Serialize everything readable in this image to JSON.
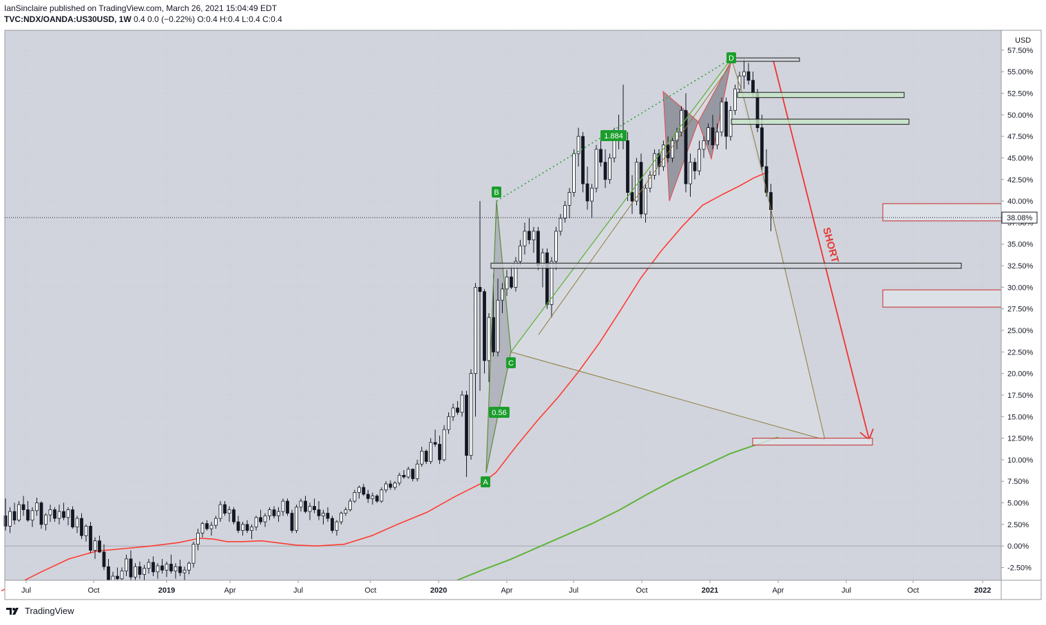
{
  "header": {
    "published_line": "IanSinclaire published on TradingView.com, March 26, 2021 15:04:49 EDT",
    "symbol": "TVC:NDX/OANDA:US30USD, 1W",
    "values": "0.4 0.0 (−0.22%) O:0.4 H:0.4 L:0.4 C:0.4"
  },
  "footer": {
    "brand": "TradingView",
    "logo_icon": "tradingview-logo-icon"
  },
  "chart_data": {
    "type": "candlestick",
    "currency_label": "USD",
    "y_unit": "%",
    "ylim": [
      -3.8,
      58.0
    ],
    "y_ticks": [
      "-2.50%",
      "0.00%",
      "2.50%",
      "5.00%",
      "7.50%",
      "10.00%",
      "12.50%",
      "15.00%",
      "17.50%",
      "20.00%",
      "22.50%",
      "25.00%",
      "27.50%",
      "30.00%",
      "32.50%",
      "35.00%",
      "37.50%",
      "40.00%",
      "42.50%",
      "45.00%",
      "47.50%",
      "50.00%",
      "52.50%",
      "55.00%",
      "57.50%"
    ],
    "x_ticks": [
      "Jul",
      "Oct",
      "2019",
      "Apr",
      "Jul",
      "Oct",
      "2020",
      "Apr",
      "Jul",
      "Oct",
      "2021",
      "Apr",
      "Jul",
      "Oct",
      "2022"
    ],
    "bold_x_ticks": [
      "2019",
      "2020",
      "2021",
      "2022"
    ],
    "last_price_label": "38.08%",
    "last_price": 38.08,
    "candles": [
      [
        3.5,
        5.5,
        1.8,
        2.3
      ],
      [
        2.3,
        4.5,
        1.5,
        4.0
      ],
      [
        4.0,
        5.0,
        2.5,
        3.0
      ],
      [
        3.0,
        5.2,
        2.8,
        4.8
      ],
      [
        4.8,
        5.8,
        3.5,
        4.2
      ],
      [
        4.2,
        5.2,
        2.8,
        3.0
      ],
      [
        3.0,
        4.5,
        2.2,
        4.1
      ],
      [
        4.1,
        5.6,
        3.5,
        5.0
      ],
      [
        5.0,
        5.2,
        2.0,
        2.5
      ],
      [
        2.5,
        3.8,
        1.8,
        3.6
      ],
      [
        3.6,
        4.8,
        2.8,
        4.2
      ],
      [
        4.2,
        4.5,
        2.8,
        3.2
      ],
      [
        3.2,
        4.8,
        2.5,
        4.0
      ],
      [
        4.0,
        5.0,
        3.0,
        3.3
      ],
      [
        3.3,
        4.5,
        2.4,
        4.2
      ],
      [
        4.2,
        4.6,
        2.0,
        2.2
      ],
      [
        2.2,
        3.5,
        1.5,
        3.2
      ],
      [
        3.2,
        3.8,
        0.8,
        1.2
      ],
      [
        1.2,
        2.5,
        0.5,
        2.3
      ],
      [
        2.3,
        2.8,
        -0.8,
        -0.5
      ],
      [
        -0.5,
        1.0,
        -1.5,
        0.6
      ],
      [
        0.6,
        1.2,
        -0.8,
        -0.7
      ],
      [
        -0.7,
        0.2,
        -2.8,
        -2.4
      ],
      [
        -2.4,
        -1.5,
        -4.5,
        -4.0
      ],
      [
        -4.0,
        -3.0,
        -5.0,
        -3.5
      ],
      [
        -3.5,
        -2.5,
        -4.8,
        -3.8
      ],
      [
        -3.8,
        -2.5,
        -4.6,
        -2.9
      ],
      [
        -2.9,
        -1.0,
        -3.5,
        -1.5
      ],
      [
        -1.5,
        -0.5,
        -4.0,
        -3.6
      ],
      [
        -3.6,
        -2.0,
        -4.2,
        -2.4
      ],
      [
        -2.4,
        -1.8,
        -3.8,
        -3.3
      ],
      [
        -3.3,
        -2.2,
        -4.0,
        -2.6
      ],
      [
        -2.6,
        -1.5,
        -3.2,
        -1.9
      ],
      [
        -1.9,
        -1.2,
        -3.5,
        -3.0
      ],
      [
        -3.0,
        -2.0,
        -3.8,
        -2.3
      ],
      [
        -2.3,
        -1.5,
        -3.2,
        -2.8
      ],
      [
        -2.8,
        -1.8,
        -3.6,
        -2.1
      ],
      [
        -2.1,
        -1.0,
        -3.2,
        -2.9
      ],
      [
        -2.9,
        -2.0,
        -3.8,
        -2.4
      ],
      [
        -2.4,
        -1.6,
        -3.5,
        -3.1
      ],
      [
        -3.1,
        -2.4,
        -4.0,
        -2.8
      ],
      [
        -2.8,
        -1.8,
        -3.3,
        -2.0
      ],
      [
        -2.0,
        0.5,
        -2.5,
        0.2
      ],
      [
        0.2,
        2.0,
        -0.5,
        1.5
      ],
      [
        1.5,
        2.8,
        1.0,
        2.6
      ],
      [
        2.6,
        3.0,
        1.8,
        2.0
      ],
      [
        2.0,
        2.8,
        1.2,
        2.4
      ],
      [
        2.4,
        3.5,
        2.0,
        3.2
      ],
      [
        3.2,
        5.2,
        2.8,
        4.8
      ],
      [
        4.8,
        5.2,
        3.5,
        3.8
      ],
      [
        3.8,
        4.6,
        2.8,
        4.2
      ],
      [
        4.2,
        4.5,
        2.5,
        2.8
      ],
      [
        2.8,
        3.5,
        1.5,
        1.8
      ],
      [
        1.8,
        2.8,
        1.2,
        2.5
      ],
      [
        2.5,
        3.0,
        1.5,
        1.8
      ],
      [
        1.8,
        2.5,
        0.8,
        2.2
      ],
      [
        2.2,
        3.5,
        1.8,
        3.3
      ],
      [
        3.3,
        4.2,
        2.5,
        2.8
      ],
      [
        2.8,
        3.8,
        2.2,
        3.5
      ],
      [
        3.5,
        4.5,
        3.0,
        4.2
      ],
      [
        4.2,
        4.6,
        3.2,
        3.5
      ],
      [
        3.5,
        4.5,
        2.8,
        4.0
      ],
      [
        4.0,
        5.5,
        3.5,
        5.2
      ],
      [
        5.2,
        5.5,
        3.5,
        3.8
      ],
      [
        3.8,
        4.2,
        1.5,
        1.8
      ],
      [
        1.8,
        4.8,
        1.5,
        4.5
      ],
      [
        4.5,
        5.5,
        4.0,
        5.2
      ],
      [
        5.2,
        5.8,
        3.8,
        4.0
      ],
      [
        4.0,
        5.0,
        3.0,
        4.6
      ],
      [
        4.6,
        5.5,
        3.8,
        4.2
      ],
      [
        4.2,
        5.2,
        3.0,
        3.5
      ],
      [
        3.5,
        4.2,
        2.5,
        3.8
      ],
      [
        3.8,
        4.5,
        2.8,
        3.2
      ],
      [
        3.2,
        3.5,
        1.5,
        1.8
      ],
      [
        1.8,
        3.0,
        1.2,
        2.8
      ],
      [
        2.8,
        4.0,
        2.5,
        3.8
      ],
      [
        3.8,
        4.5,
        3.5,
        4.2
      ],
      [
        4.2,
        5.5,
        4.0,
        5.2
      ],
      [
        5.2,
        6.5,
        5.0,
        6.2
      ],
      [
        6.2,
        7.0,
        5.5,
        6.8
      ],
      [
        6.8,
        7.2,
        5.8,
        6.0
      ],
      [
        6.0,
        6.5,
        5.0,
        5.5
      ],
      [
        5.5,
        6.2,
        4.8,
        5.8
      ],
      [
        5.8,
        6.0,
        5.0,
        5.2
      ],
      [
        5.2,
        6.8,
        5.0,
        6.5
      ],
      [
        6.5,
        7.5,
        6.2,
        7.2
      ],
      [
        7.2,
        7.6,
        6.5,
        6.8
      ],
      [
        6.8,
        7.5,
        6.5,
        7.3
      ],
      [
        7.3,
        8.5,
        7.0,
        8.2
      ],
      [
        8.2,
        8.8,
        7.8,
        8.0
      ],
      [
        8.0,
        9.2,
        7.8,
        8.9
      ],
      [
        8.9,
        9.0,
        7.5,
        7.8
      ],
      [
        7.8,
        10.0,
        7.5,
        9.5
      ],
      [
        9.5,
        11.5,
        9.2,
        11.0
      ],
      [
        11.0,
        11.2,
        9.5,
        9.8
      ],
      [
        9.8,
        12.5,
        9.5,
        12.0
      ],
      [
        12.0,
        13.5,
        11.5,
        11.8
      ],
      [
        11.8,
        12.8,
        9.5,
        10.0
      ],
      [
        10.0,
        14.0,
        9.8,
        13.5
      ],
      [
        13.5,
        15.5,
        13.0,
        15.0
      ],
      [
        15.0,
        16.5,
        14.5,
        16.0
      ],
      [
        16.0,
        16.8,
        15.2,
        15.5
      ],
      [
        15.5,
        18.0,
        15.0,
        17.5
      ],
      [
        17.5,
        18.0,
        8.0,
        10.5
      ],
      [
        10.5,
        20.5,
        10.0,
        20.0
      ],
      [
        20.0,
        30.5,
        15.0,
        30.0
      ],
      [
        30.0,
        40.0,
        18.0,
        29.5
      ],
      [
        29.5,
        29.8,
        20.0,
        21.5
      ],
      [
        21.5,
        27.0,
        19.0,
        26.5
      ],
      [
        26.5,
        31.5,
        22.0,
        22.5
      ],
      [
        22.5,
        31.0,
        22.0,
        28.5
      ],
      [
        28.5,
        30.5,
        27.0,
        29.8
      ],
      [
        29.8,
        32.0,
        29.0,
        31.2
      ],
      [
        31.2,
        32.5,
        29.8,
        30.0
      ],
      [
        30.0,
        33.5,
        29.5,
        33.0
      ],
      [
        33.0,
        35.5,
        32.5,
        34.8
      ],
      [
        34.8,
        37.5,
        33.8,
        36.5
      ],
      [
        36.5,
        38.0,
        35.0,
        35.5
      ],
      [
        35.5,
        37.0,
        34.0,
        36.5
      ],
      [
        36.5,
        37.0,
        32.0,
        32.5
      ],
      [
        32.5,
        34.5,
        30.0,
        34.0
      ],
      [
        34.0,
        34.5,
        27.5,
        28.0
      ],
      [
        28.0,
        33.5,
        26.5,
        33.0
      ],
      [
        33.0,
        37.0,
        32.0,
        36.5
      ],
      [
        36.5,
        38.5,
        36.0,
        38.0
      ],
      [
        38.0,
        40.0,
        37.5,
        39.5
      ],
      [
        39.5,
        41.5,
        38.0,
        41.0
      ],
      [
        41.0,
        46.0,
        40.5,
        45.5
      ],
      [
        45.5,
        48.5,
        44.0,
        47.5
      ],
      [
        47.5,
        48.0,
        41.0,
        42.0
      ],
      [
        42.0,
        44.0,
        39.0,
        40.0
      ],
      [
        40.0,
        42.0,
        38.0,
        41.5
      ],
      [
        41.5,
        46.5,
        41.0,
        46.0
      ],
      [
        46.0,
        47.5,
        44.0,
        44.5
      ],
      [
        44.5,
        46.0,
        41.5,
        42.5
      ],
      [
        42.5,
        45.5,
        42.0,
        45.0
      ],
      [
        45.0,
        48.5,
        44.5,
        48.0
      ],
      [
        48.0,
        50.0,
        46.0,
        47.5
      ],
      [
        47.5,
        53.5,
        46.0,
        47.0
      ],
      [
        47.0,
        48.0,
        40.0,
        41.0
      ],
      [
        41.0,
        43.0,
        38.5,
        40.0
      ],
      [
        40.0,
        45.0,
        39.5,
        44.5
      ],
      [
        44.5,
        45.5,
        38.0,
        38.5
      ],
      [
        38.5,
        42.0,
        37.5,
        41.5
      ],
      [
        41.5,
        43.5,
        41.0,
        43.0
      ],
      [
        43.0,
        46.0,
        42.5,
        45.5
      ],
      [
        45.5,
        46.0,
        43.0,
        44.0
      ],
      [
        44.0,
        47.0,
        43.5,
        46.5
      ],
      [
        46.5,
        47.5,
        44.5,
        45.0
      ],
      [
        45.0,
        47.5,
        44.5,
        47.0
      ],
      [
        47.0,
        48.5,
        46.0,
        48.0
      ],
      [
        48.0,
        51.0,
        47.5,
        50.5
      ],
      [
        50.5,
        52.5,
        41.0,
        42.0
      ],
      [
        42.0,
        45.5,
        40.5,
        44.5
      ],
      [
        44.5,
        45.0,
        42.5,
        43.5
      ],
      [
        43.5,
        47.0,
        43.0,
        46.0
      ],
      [
        46.0,
        47.5,
        45.0,
        47.0
      ],
      [
        47.0,
        49.0,
        46.5,
        48.5
      ],
      [
        48.5,
        50.0,
        46.0,
        46.5
      ],
      [
        46.5,
        49.0,
        46.0,
        48.0
      ],
      [
        48.0,
        52.0,
        47.5,
        51.5
      ],
      [
        51.5,
        52.0,
        46.0,
        47.5
      ],
      [
        47.5,
        51.0,
        47.0,
        50.5
      ],
      [
        50.5,
        53.5,
        50.0,
        53.0
      ],
      [
        53.0,
        55.0,
        52.5,
        54.5
      ],
      [
        54.5,
        56.5,
        53.0,
        55.0
      ],
      [
        55.0,
        56.0,
        53.5,
        54.0
      ],
      [
        54.0,
        55.0,
        52.0,
        52.5
      ],
      [
        52.5,
        53.0,
        48.0,
        48.5
      ],
      [
        48.5,
        50.0,
        43.5,
        44.0
      ],
      [
        44.0,
        46.0,
        40.5,
        41.0
      ],
      [
        41.0,
        42.0,
        36.5,
        39.0
      ],
      [
        39.0,
        40.5,
        37.5,
        39.8
      ],
      [
        39.8,
        42.5,
        38.0,
        38.2
      ]
    ],
    "ma_slow": [
      [
        2,
        -5.2
      ],
      [
        30,
        -4.2
      ],
      [
        60,
        -3.0
      ],
      [
        100,
        -1.5
      ],
      [
        140,
        -0.6
      ],
      [
        180,
        -0.3
      ],
      [
        220,
        0.0
      ],
      [
        260,
        0.4
      ],
      [
        290,
        0.9
      ],
      [
        310,
        0.8
      ],
      [
        330,
        0.5
      ],
      [
        350,
        0.5
      ],
      [
        380,
        0.6
      ],
      [
        400,
        0.4
      ],
      [
        430,
        0.1
      ],
      [
        460,
        0.0
      ],
      [
        500,
        0.2
      ],
      [
        540,
        1.2
      ],
      [
        580,
        2.6
      ],
      [
        620,
        3.9
      ],
      [
        660,
        5.7
      ],
      [
        700,
        7.3
      ],
      [
        720,
        8.5
      ],
      [
        750,
        11.6
      ],
      [
        780,
        14.5
      ],
      [
        810,
        17.2
      ],
      [
        840,
        20.2
      ],
      [
        870,
        23.5
      ],
      [
        900,
        27.2
      ],
      [
        930,
        31.0
      ],
      [
        960,
        34.2
      ],
      [
        990,
        37.0
      ],
      [
        1020,
        39.5
      ],
      [
        1050,
        40.8
      ],
      [
        1075,
        41.8
      ],
      [
        1095,
        42.7
      ],
      [
        1116,
        43.4
      ]
    ],
    "ma_long": [
      [
        580,
        -5.4
      ],
      [
        620,
        -4.8
      ],
      [
        660,
        -4.1
      ],
      [
        700,
        -2.8
      ],
      [
        740,
        -1.6
      ],
      [
        780,
        -0.2
      ],
      [
        820,
        1.2
      ],
      [
        860,
        2.6
      ],
      [
        900,
        4.2
      ],
      [
        940,
        6.0
      ],
      [
        980,
        7.7
      ],
      [
        1020,
        9.2
      ],
      [
        1060,
        10.7
      ],
      [
        1100,
        11.8
      ],
      [
        1130,
        12.6
      ]
    ],
    "xabcd_pattern": {
      "A": 8.5,
      "B": 40.0,
      "C": 22.5,
      "D": 56.5,
      "labels": [
        "A",
        "B",
        "C",
        "D"
      ],
      "ratios": [
        "0.56",
        "1.884"
      ]
    },
    "annotations": {
      "short_label": "SHORT",
      "zones": [
        {
          "type": "resistance",
          "ymin": 52.0,
          "ymax": 52.6
        },
        {
          "type": "resistance",
          "ymin": 48.9,
          "ymax": 49.5
        },
        {
          "type": "level",
          "ymin": 56.2,
          "ymax": 56.6
        },
        {
          "type": "level",
          "ymin": 32.2,
          "ymax": 32.8
        },
        {
          "type": "target",
          "ymin": 37.7,
          "ymax": 39.7
        },
        {
          "type": "target",
          "ymin": 27.7,
          "ymax": 29.7
        },
        {
          "type": "target",
          "ymin": 11.7,
          "ymax": 12.5
        }
      ]
    }
  }
}
